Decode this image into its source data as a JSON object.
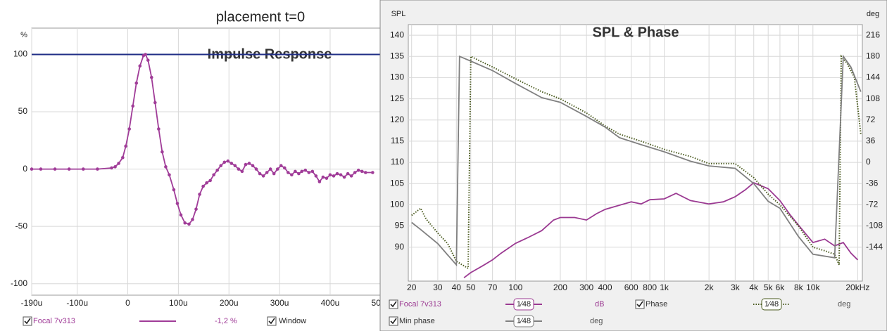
{
  "header": {
    "title": "placement t=0"
  },
  "chart_data": [
    {
      "type": "line",
      "title": "Impulse Response",
      "y_label": "%",
      "xlim": [
        -190,
        510
      ],
      "xticks": [
        {
          "value": -190,
          "label": "-190u"
        },
        {
          "value": -100,
          "label": "-100u"
        },
        0,
        {
          "value": 100,
          "label": "100u"
        },
        {
          "value": 200,
          "label": "200u"
        },
        {
          "value": 300,
          "label": "300u"
        },
        {
          "value": 400,
          "label": "400u"
        },
        {
          "value": 500,
          "label": "500u"
        }
      ],
      "ylim": [
        -110,
        123
      ],
      "yticks": [
        100,
        50,
        0,
        -50,
        -100
      ],
      "grid": true,
      "x": [
        -190,
        -172,
        -144,
        -116,
        -88,
        -60,
        -32,
        -25,
        -18,
        -10,
        -4,
        3,
        10,
        17,
        24,
        31,
        35,
        40,
        47,
        54,
        61,
        68,
        75,
        82,
        91,
        98,
        105,
        113,
        121,
        128,
        135,
        142,
        149,
        156,
        163,
        170,
        177,
        184,
        191,
        198,
        205,
        212,
        219,
        226,
        233,
        240,
        247,
        254,
        261,
        268,
        275,
        282,
        289,
        296,
        303,
        310,
        317,
        324,
        331,
        338,
        344,
        351,
        358,
        365,
        372,
        379,
        386,
        393,
        400,
        407,
        414,
        421,
        428,
        435,
        442,
        449,
        456,
        463,
        470,
        484
      ],
      "series": [
        {
          "name": "Focal 7v313",
          "color": "#a03c98",
          "legend_value": "-1,2 %",
          "values": [
            0,
            0,
            0,
            0,
            0,
            0,
            1,
            2,
            5,
            10,
            20,
            35,
            55,
            75,
            90,
            99,
            100,
            95,
            80,
            58,
            35,
            15,
            2,
            -5,
            -18,
            -30,
            -40,
            -47,
            -48,
            -44,
            -35,
            -22,
            -15,
            -12,
            -10,
            -5,
            -1,
            3,
            6,
            7,
            5,
            3,
            0,
            -2,
            4,
            5,
            3,
            0,
            -4,
            -6,
            -3,
            0,
            -4,
            0,
            3,
            1,
            -3,
            -5,
            -2,
            -4,
            -2,
            -1,
            -3,
            -2,
            -6,
            -11,
            -7,
            -8,
            -5,
            -6,
            -4,
            -5,
            -7,
            -4,
            -6,
            -3,
            -1,
            -2,
            -3,
            -3
          ]
        }
      ],
      "window": {
        "name": "Window",
        "color": "#1f2d86",
        "level": 100
      }
    },
    {
      "type": "line",
      "title": "SPL & Phase",
      "y_label": "SPL",
      "y2_label": "deg",
      "xscale": "log",
      "xlim": [
        19,
        21500
      ],
      "xticks": [
        20,
        30,
        40,
        50,
        70,
        100,
        200,
        300,
        400,
        600,
        800,
        {
          "value": 1000,
          "label": "1k"
        },
        {
          "value": 2000,
          "label": "2k"
        },
        {
          "value": 3000,
          "label": "3k"
        },
        {
          "value": 4000,
          "label": "4k"
        },
        {
          "value": 5000,
          "label": "5k"
        },
        {
          "value": 6000,
          "label": "6k"
        },
        {
          "value": 8000,
          "label": "8k"
        },
        {
          "value": 10000,
          "label": "10k"
        },
        {
          "value": 20000,
          "label": "20kHz"
        }
      ],
      "ylim": [
        82,
        142.5
      ],
      "yticks": [
        90,
        95,
        100,
        105,
        110,
        115,
        120,
        125,
        130,
        135,
        140
      ],
      "y2lim": [
        -201.6,
        234
      ],
      "y2ticks": [
        -144,
        -108,
        -72,
        -36,
        0,
        36,
        72,
        108,
        144,
        180,
        216
      ],
      "grid": true,
      "series": [
        {
          "name": "Focal 7v313",
          "color": "#9b3a92",
          "unit": "dB",
          "smoothing": "1⁄48",
          "style": "solid",
          "axis": "y",
          "x": [
            45,
            50,
            60,
            70,
            80,
            100,
            120,
            150,
            180,
            200,
            250,
            300,
            350,
            400,
            500,
            600,
            700,
            800,
            1000,
            1200,
            1500,
            2000,
            2500,
            3000,
            3500,
            4000,
            5000,
            6000,
            7000,
            8000,
            10000,
            12000,
            14000,
            16000,
            18000,
            20000
          ],
          "values": [
            82.8,
            84,
            85.6,
            87,
            88.6,
            90.9,
            92.2,
            93.9,
            96.4,
            97,
            97,
            96.4,
            97.9,
            98.9,
            99.9,
            100.7,
            100.2,
            101.2,
            101.4,
            102.7,
            101,
            100.2,
            100.7,
            101.9,
            103.5,
            105.2,
            103.8,
            101,
            97.7,
            95.2,
            91.1,
            91.9,
            90.3,
            91.1,
            88.6,
            87
          ]
        },
        {
          "name": "Phase",
          "color": "#4a5a1e",
          "unit": "deg",
          "smoothing": "1⁄48",
          "style": "dotted",
          "axis": "y2",
          "x": [
            20,
            23,
            25,
            30,
            35,
            40,
            48,
            50,
            60,
            70,
            100,
            150,
            200,
            300,
            400,
            500,
            700,
            1000,
            1500,
            2000,
            3000,
            4000,
            5000,
            6000,
            8000,
            10000,
            12000,
            14000,
            15000,
            15500,
            17000,
            19000,
            21000
          ],
          "values": [
            -90,
            -78,
            -96,
            -120,
            -138,
            -168,
            -180,
            180,
            170,
            162,
            142,
            120,
            108,
            84,
            62,
            48,
            36,
            22,
            10,
            -2,
            -2,
            -26,
            -54,
            -72,
            -108,
            -144,
            -150,
            -156,
            -174,
            180,
            168,
            144,
            48
          ]
        },
        {
          "name": "Min phase",
          "color": "#808080",
          "unit": "deg",
          "smoothing": "1⁄48",
          "style": "solid",
          "axis": "y2",
          "x": [
            20,
            23,
            30,
            40,
            42,
            50,
            70,
            100,
            150,
            200,
            300,
            400,
            500,
            700,
            1000,
            1500,
            2000,
            3000,
            4000,
            5000,
            6000,
            8000,
            10000,
            14000,
            16000,
            18000,
            21000
          ],
          "values": [
            -102,
            -114,
            -138,
            -174,
            180,
            172,
            156,
            134,
            110,
            102,
            78,
            60,
            42,
            30,
            18,
            2,
            -6,
            -10,
            -36,
            -66,
            -78,
            -126,
            -156,
            -162,
            180,
            162,
            120
          ]
        }
      ]
    }
  ]
}
